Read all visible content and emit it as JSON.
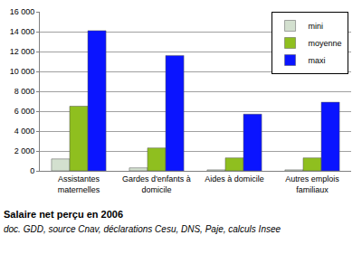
{
  "chart_data": {
    "type": "bar",
    "title": "Salaire net perçu en 2006",
    "subtitle": "doc. GDD, source Cnav, déclarations Cesu, DNS, Paje, calculs Insee",
    "categories": [
      "Assistantes maternelles",
      "Gardes d'enfants à domicile",
      "Aides à domicile",
      "Autres emplois familiaux"
    ],
    "series": [
      {
        "name": "mini",
        "color": "#d3e0cf",
        "values": [
          1200,
          300,
          100,
          100
        ]
      },
      {
        "name": "moyenne",
        "color": "#8fbf1f",
        "values": [
          6500,
          2300,
          1300,
          1300
        ]
      },
      {
        "name": "maxi",
        "color": "#0a14ff",
        "values": [
          14100,
          11600,
          5700,
          6900
        ]
      }
    ],
    "ylim": [
      0,
      16000
    ],
    "yticks": [
      0,
      {
        "value": 2000,
        "label": "2 000"
      },
      {
        "value": 4000,
        "label": "4 000"
      },
      {
        "value": 6000,
        "label": "6 000"
      },
      {
        "value": 8000,
        "label": "8 000"
      },
      {
        "value": 10000,
        "label": "10 000"
      },
      {
        "value": 12000,
        "label": "12 000"
      },
      {
        "value": 14000,
        "label": "14 000"
      },
      {
        "value": 16000,
        "label": "16 000"
      }
    ],
    "grid": true,
    "legend": "top right"
  }
}
